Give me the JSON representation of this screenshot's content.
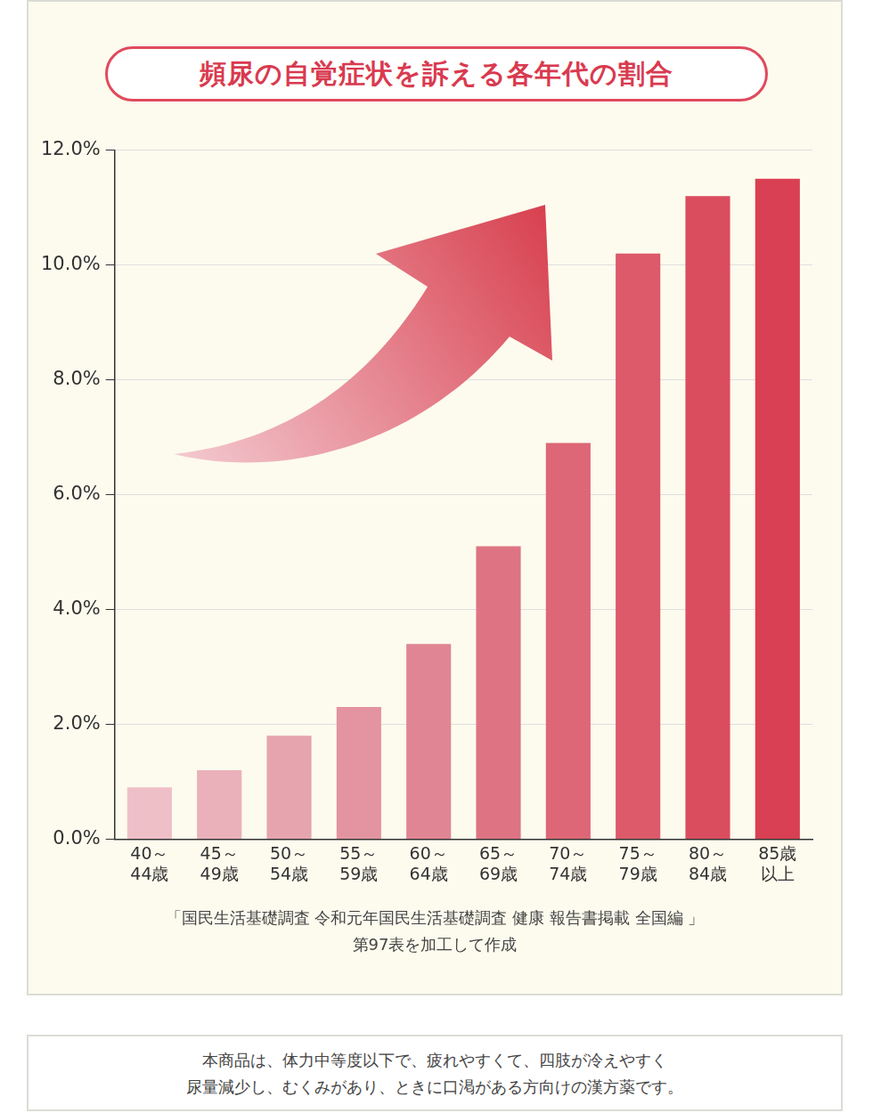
{
  "chart_data": {
    "type": "bar",
    "title": "頻尿の自覚症状を訴える各年代の割合",
    "categories": [
      "40～\n44歳",
      "45～\n49歳",
      "50～\n54歳",
      "55～\n59歳",
      "60～\n64歳",
      "65～\n69歳",
      "70～\n74歳",
      "75～\n79歳",
      "80～\n84歳",
      "85歳\n以上"
    ],
    "values": [
      0.9,
      1.2,
      1.8,
      2.3,
      3.4,
      5.1,
      6.9,
      10.2,
      11.2,
      11.5
    ],
    "colors": [
      "#efbfc8",
      "#eab1bb",
      "#e6a4ae",
      "#e394a0",
      "#e08593",
      "#de7483",
      "#dd6776",
      "#dc5a6a",
      "#da4d5f",
      "#d94053"
    ],
    "ylim": [
      0,
      12
    ],
    "yticks": [
      {
        "value": 0,
        "label": "0.0%"
      },
      {
        "value": 2,
        "label": "2.0%"
      },
      {
        "value": 4,
        "label": "4.0%"
      },
      {
        "value": 6,
        "label": "6.0%"
      },
      {
        "value": 8,
        "label": "8.0%"
      },
      {
        "value": 10,
        "label": "10.0%"
      },
      {
        "value": 12,
        "label": "12.0%"
      }
    ],
    "grid": true,
    "source": "「国民生活基礎調査 令和元年国民生活基礎調査 健康 報告書掲載 全国編 」\n第97表を加工して作成",
    "note": "本商品は、体力中等度以下で、疲れやすくて、四肢が冷えやすく\n尿量減少し、むくみがあり、ときに口渇がある方向けの漢方薬です。"
  }
}
